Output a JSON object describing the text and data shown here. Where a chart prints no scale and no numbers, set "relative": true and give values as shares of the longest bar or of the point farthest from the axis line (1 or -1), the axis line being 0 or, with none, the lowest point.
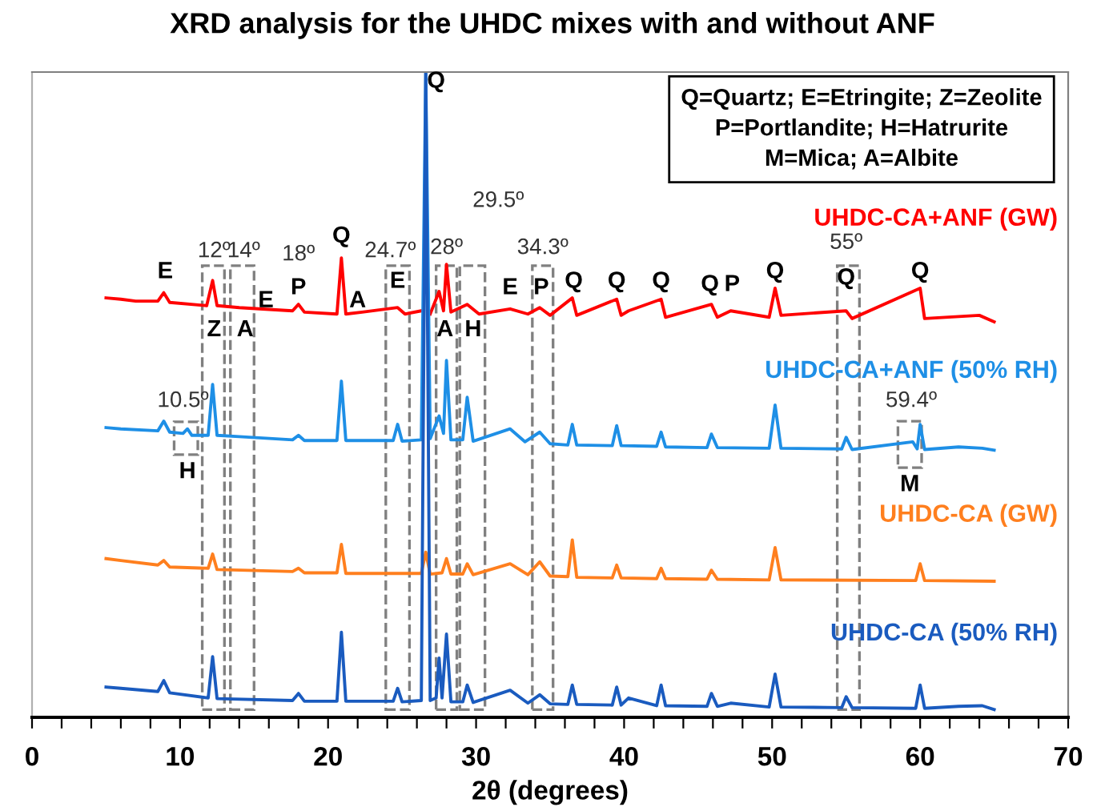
{
  "chart_data": {
    "type": "line",
    "relative": true,
    "title": "XRD analysis for the UHDC mixes with and without ANF",
    "xlabel": "2θ (degrees)",
    "xlim": [
      0,
      70
    ],
    "xticks": [
      0,
      {
        "value": 2,
        "label": null
      },
      {
        "value": 4,
        "label": null
      },
      {
        "value": 6,
        "label": null
      },
      {
        "value": 8,
        "label": null
      },
      10,
      {
        "value": 12,
        "label": null
      },
      {
        "value": 14,
        "label": null
      },
      {
        "value": 16,
        "label": null
      },
      {
        "value": 18,
        "label": null
      },
      20,
      {
        "value": 22,
        "label": null
      },
      {
        "value": 24,
        "label": null
      },
      {
        "value": 26,
        "label": null
      },
      {
        "value": 28,
        "label": null
      },
      30,
      {
        "value": 32,
        "label": null
      },
      {
        "value": 34,
        "label": null
      },
      {
        "value": 36,
        "label": null
      },
      {
        "value": 38,
        "label": null
      },
      40,
      {
        "value": 42,
        "label": null
      },
      {
        "value": 44,
        "label": null
      },
      {
        "value": 46,
        "label": null
      },
      {
        "value": 48,
        "label": null
      },
      50,
      {
        "value": 52,
        "label": null
      },
      {
        "value": 54,
        "label": null
      },
      {
        "value": 56,
        "label": null
      },
      {
        "value": 58,
        "label": null
      },
      60,
      {
        "value": 62,
        "label": null
      },
      {
        "value": 64,
        "label": null
      },
      {
        "value": 66,
        "label": null
      },
      {
        "value": 68,
        "label": null
      },
      70
    ],
    "grid": false,
    "legend": false,
    "marker": "none",
    "line_style": "solid",
    "series": [
      {
        "name": "UHDC-CA+ANF (GW)",
        "color": "#ff0000",
        "x": [
          5,
          6,
          7,
          8.5,
          8.9,
          9.3,
          11.8,
          12.2,
          12.5,
          14,
          17.6,
          18,
          18.4,
          20.6,
          20.9,
          21.2,
          22.3,
          24.7,
          25.2,
          26.3,
          26.6,
          26.9,
          27.5,
          27.8,
          28.0,
          28.3,
          29.4,
          30.2,
          32.3,
          33.5,
          34.3,
          35,
          36.5,
          36.8,
          39.5,
          39.8,
          40.3,
          42.5,
          42.8,
          45.9,
          46.3,
          47.2,
          49.8,
          50.2,
          50.6,
          55,
          55.4,
          60,
          60.3,
          64,
          65
        ],
        "values": [
          0.65,
          0.648,
          0.645,
          0.645,
          0.658,
          0.643,
          0.638,
          0.677,
          0.638,
          0.635,
          0.63,
          0.64,
          0.628,
          0.625,
          0.712,
          0.625,
          0.628,
          0.635,
          0.625,
          0.63,
          null,
          0.625,
          0.66,
          0.63,
          0.702,
          0.628,
          0.64,
          0.625,
          0.633,
          0.625,
          0.635,
          0.623,
          0.65,
          0.623,
          0.648,
          0.623,
          0.63,
          0.648,
          0.62,
          0.64,
          0.62,
          0.63,
          0.62,
          0.665,
          0.623,
          0.63,
          0.618,
          0.665,
          0.618,
          0.623,
          0.613
        ]
      },
      {
        "name": "UHDC-CA+ANF (50% RH)",
        "color": "#1e8fe6",
        "x": [
          5,
          6,
          8.5,
          8.9,
          9.3,
          10.2,
          10.5,
          10.8,
          11.9,
          12.2,
          12.5,
          14,
          17.6,
          18,
          18.4,
          20.6,
          20.9,
          21.2,
          24.4,
          24.7,
          25.0,
          26.3,
          26.6,
          26.9,
          27.5,
          27.8,
          28.0,
          28.3,
          29.1,
          29.4,
          29.8,
          32.3,
          33.3,
          34.3,
          35,
          36.2,
          36.5,
          36.8,
          39.2,
          39.5,
          39.8,
          42.2,
          42.5,
          42.8,
          45.6,
          45.9,
          46.3,
          49.8,
          50.2,
          50.6,
          54.7,
          55,
          55.4,
          59.5,
          59.8,
          60,
          60.3,
          62.6,
          64.2,
          65
        ],
        "values": [
          0.449,
          0.447,
          0.444,
          0.459,
          0.442,
          0.44,
          0.447,
          0.437,
          0.437,
          0.516,
          0.437,
          0.435,
          0.43,
          0.437,
          0.429,
          0.429,
          0.521,
          0.429,
          0.429,
          0.454,
          0.428,
          0.43,
          1.0,
          0.432,
          0.467,
          0.44,
          0.553,
          0.43,
          0.43,
          0.496,
          0.428,
          0.447,
          0.427,
          0.442,
          0.424,
          0.422,
          0.454,
          0.422,
          0.421,
          0.452,
          0.421,
          0.42,
          0.442,
          0.419,
          0.418,
          0.439,
          0.418,
          0.417,
          0.484,
          0.417,
          0.416,
          0.434,
          0.415,
          0.427,
          0.416,
          0.454,
          0.415,
          0.419,
          0.417,
          0.414
        ]
      },
      {
        "name": "UHDC-CA (GW)",
        "color": "#ff7f1e",
        "x": [
          5,
          6,
          8.5,
          8.9,
          9.3,
          11.9,
          12.2,
          12.5,
          17.6,
          18,
          18.4,
          20.6,
          20.9,
          21.2,
          26.3,
          26.6,
          26.9,
          27.7,
          28,
          28.3,
          29.1,
          29.4,
          29.8,
          32.3,
          33.5,
          34.3,
          35,
          36.2,
          36.5,
          36.8,
          39.2,
          39.5,
          39.8,
          42.2,
          42.5,
          42.8,
          45.6,
          45.9,
          46.3,
          49.8,
          50.2,
          50.6,
          59.7,
          60,
          60.3,
          65
        ],
        "values": [
          0.246,
          0.243,
          0.236,
          0.243,
          0.233,
          0.231,
          0.253,
          0.229,
          0.226,
          0.231,
          0.224,
          0.224,
          0.268,
          0.223,
          0.223,
          0.256,
          0.222,
          0.224,
          0.246,
          0.222,
          0.222,
          0.238,
          0.221,
          0.238,
          0.221,
          0.241,
          0.219,
          0.218,
          0.275,
          0.217,
          0.216,
          0.236,
          0.216,
          0.215,
          0.231,
          0.215,
          0.214,
          0.228,
          0.214,
          0.213,
          0.263,
          0.213,
          0.212,
          0.238,
          0.212,
          0.211
        ]
      },
      {
        "name": "UHDC-CA (50% RH)",
        "color": "#1a5bbf",
        "x": [
          5,
          6,
          8.5,
          8.9,
          9.3,
          11.9,
          12.2,
          12.5,
          17.6,
          18,
          18.4,
          20.6,
          20.9,
          21.2,
          24.4,
          24.7,
          25.0,
          26.3,
          26.6,
          26.9,
          27.3,
          27.5,
          27.7,
          28,
          28.3,
          29.1,
          29.4,
          29.8,
          32.3,
          33.5,
          34.3,
          35,
          36.2,
          36.5,
          36.8,
          39.2,
          39.5,
          39.8,
          40.3,
          42.2,
          42.5,
          42.8,
          45.6,
          45.9,
          46.3,
          47.2,
          49.8,
          50.2,
          50.6,
          54.7,
          55,
          55.4,
          59.7,
          60,
          60.3,
          62.6,
          64.2,
          65
        ],
        "values": [
          0.047,
          0.045,
          0.04,
          0.057,
          0.038,
          0.03,
          0.094,
          0.029,
          0.026,
          0.037,
          0.025,
          0.025,
          0.132,
          0.025,
          0.025,
          0.045,
          0.024,
          0.026,
          1.0,
          0.026,
          0.03,
          0.092,
          0.03,
          0.129,
          0.024,
          0.024,
          0.05,
          0.023,
          0.042,
          0.022,
          0.035,
          0.021,
          0.02,
          0.05,
          0.02,
          0.019,
          0.047,
          0.019,
          0.03,
          0.018,
          0.05,
          0.018,
          0.017,
          0.037,
          0.017,
          0.022,
          0.016,
          0.067,
          0.016,
          0.015,
          0.032,
          0.015,
          0.014,
          0.05,
          0.014,
          0.017,
          0.018,
          0.012
        ]
      }
    ],
    "annotations": [
      "Q=Quartz; E=Etringite; Z=Zeolite\nP=Portlandite; H=Hatrurite\nM=Mica; A=Albite",
      "12º",
      "14º",
      "18º",
      "24.7º",
      "28º",
      "29.5º",
      "34.3º",
      "55º",
      "10.5º",
      "59.4º",
      "E",
      "Z",
      "A",
      "E",
      "P",
      "Q",
      "A",
      "E",
      "Q",
      "A",
      "H",
      "E",
      "P",
      "Q",
      "Q",
      "Q",
      "Q",
      "P",
      "Q",
      "Q",
      "Q",
      "H",
      "M"
    ]
  }
}
